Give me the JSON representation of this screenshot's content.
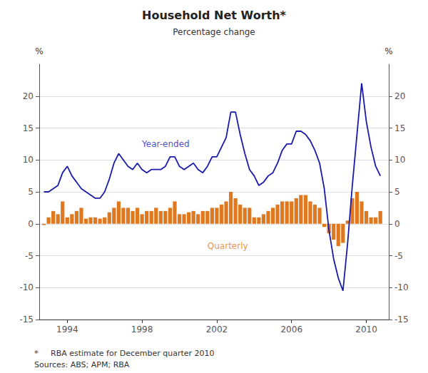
{
  "chart_data": {
    "type": "bar",
    "title": "Household Net Worth*",
    "subtitle": "Percentage change",
    "ylabel": "%",
    "y2label": "%",
    "footnotes": [
      "*     RBA estimate for December quarter 2010",
      "Sources: ABS; APM; RBA"
    ],
    "x": [
      1992.75,
      1993.0,
      1993.25,
      1993.5,
      1993.75,
      1994.0,
      1994.25,
      1994.5,
      1994.75,
      1995.0,
      1995.25,
      1995.5,
      1995.75,
      1996.0,
      1996.25,
      1996.5,
      1996.75,
      1997.0,
      1997.25,
      1997.5,
      1997.75,
      1998.0,
      1998.25,
      1998.5,
      1998.75,
      1999.0,
      1999.25,
      1999.5,
      1999.75,
      2000.0,
      2000.25,
      2000.5,
      2000.75,
      2001.0,
      2001.25,
      2001.5,
      2001.75,
      2002.0,
      2002.25,
      2002.5,
      2002.75,
      2003.0,
      2003.25,
      2003.5,
      2003.75,
      2004.0,
      2004.25,
      2004.5,
      2004.75,
      2005.0,
      2005.25,
      2005.5,
      2005.75,
      2006.0,
      2006.25,
      2006.5,
      2006.75,
      2007.0,
      2007.25,
      2007.5,
      2007.75,
      2008.0,
      2008.25,
      2008.5,
      2008.75,
      2009.0,
      2009.25,
      2009.5,
      2009.75,
      2010.0,
      2010.25,
      2010.5,
      2010.75
    ],
    "series": [
      {
        "name": "Quarterly",
        "type": "bar",
        "color": "#e07820",
        "values": [
          -0.2,
          1.0,
          2.0,
          1.5,
          3.5,
          1.0,
          1.5,
          2.0,
          2.5,
          0.8,
          1.0,
          1.0,
          0.8,
          1.0,
          1.8,
          2.5,
          3.5,
          2.5,
          2.5,
          2.0,
          2.5,
          1.5,
          2.0,
          2.0,
          2.5,
          2.0,
          2.0,
          2.5,
          3.5,
          1.5,
          1.5,
          1.8,
          2.0,
          1.5,
          2.0,
          2.0,
          2.5,
          2.5,
          3.0,
          3.5,
          5.0,
          4.0,
          3.0,
          2.5,
          2.5,
          1.0,
          1.0,
          1.5,
          2.0,
          2.5,
          3.0,
          3.5,
          3.5,
          3.5,
          4.0,
          4.5,
          4.5,
          3.5,
          3.0,
          2.5,
          -0.5,
          -1.5,
          -2.5,
          -3.5,
          -3.0,
          0.5,
          4.0,
          5.0,
          3.5,
          2.0,
          1.0,
          1.0,
          2.0
        ]
      },
      {
        "name": "Year-ended",
        "type": "line",
        "color": "#1a1aaa",
        "values": [
          5.0,
          5.0,
          5.5,
          6.0,
          8.0,
          9.0,
          7.5,
          6.5,
          5.5,
          5.0,
          4.5,
          4.0,
          4.0,
          5.0,
          7.0,
          9.5,
          11.0,
          10.0,
          9.0,
          8.5,
          9.5,
          8.5,
          8.0,
          8.5,
          8.5,
          8.5,
          9.0,
          10.5,
          10.5,
          9.0,
          8.5,
          9.0,
          9.5,
          8.5,
          8.0,
          9.0,
          10.5,
          10.5,
          12.0,
          13.5,
          17.5,
          17.5,
          14.0,
          11.0,
          8.5,
          7.5,
          6.0,
          6.5,
          7.5,
          8.0,
          9.5,
          11.5,
          12.5,
          12.5,
          14.5,
          14.5,
          14.0,
          13.0,
          11.5,
          9.5,
          5.5,
          -1.0,
          -5.5,
          -8.5,
          -10.5,
          -3.0,
          6.0,
          14.0,
          22.0,
          16.0,
          12.0,
          9.0,
          7.5
        ]
      }
    ],
    "annotations": [
      {
        "text": "Year-ended",
        "x": 1998.0,
        "y": 12.5,
        "color": "#1a1aaa"
      },
      {
        "text": "Quarterly",
        "x": 2001.5,
        "y": -3.5,
        "color": "#e07820"
      }
    ],
    "xlim": [
      1992.5,
      2011.2
    ],
    "xticks": [
      1994,
      1998,
      2002,
      2006,
      2010
    ],
    "ylim": [
      -15,
      25
    ],
    "yticks": [
      -15,
      -10,
      -5,
      0,
      5,
      10,
      15,
      20
    ],
    "y2lim": [
      -15,
      25
    ],
    "y2ticks": [
      -15,
      -10,
      -5,
      0,
      5,
      10,
      15,
      20
    ],
    "grid": true
  }
}
